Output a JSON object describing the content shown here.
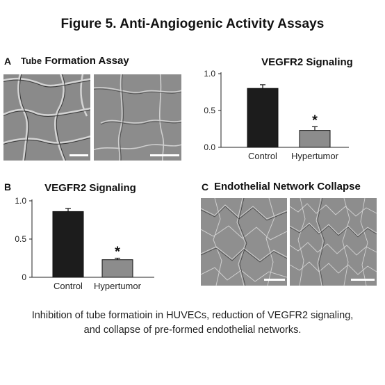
{
  "figure": {
    "title": "Figure 5. Anti-Angiogenic Activity Assays",
    "caption_line1": "Inhibition of tube formatioin in HUVECs, reduction of VEGFR2 signaling,",
    "caption_line2": "and collapse of pre-formed endothelial networks."
  },
  "panel_a": {
    "letter": "A",
    "title_prefix": "Tube",
    "title_rest": "Formation Assay"
  },
  "panel_b": {
    "letter": "B"
  },
  "panel_c": {
    "letter": "C",
    "title": "Endothelial Network Collapse"
  },
  "chart_data": [
    {
      "type": "bar",
      "title": "VEGFR2 Signaling",
      "categories": [
        "Control",
        "Hypertumor"
      ],
      "values": [
        0.8,
        0.23
      ],
      "errors": [
        0.05,
        0.05
      ],
      "significance": [
        "",
        "*"
      ],
      "colors": [
        "#1c1c1c",
        "#8c8c8c"
      ],
      "ylim": [
        0,
        1.0
      ],
      "yticks": [
        0,
        0.5,
        1.0
      ],
      "ytick_labels": [
        "0.0",
        "0.5",
        "1.0"
      ],
      "grid": false
    },
    {
      "type": "bar",
      "title": "VEGFR2 Signaling",
      "categories": [
        "Control",
        "Hypertumor"
      ],
      "values": [
        0.86,
        0.23
      ],
      "errors": [
        0.04,
        0.02
      ],
      "significance": [
        "",
        "*"
      ],
      "colors": [
        "#1c1c1c",
        "#8c8c8c"
      ],
      "ylim": [
        0,
        1.0
      ],
      "yticks": [
        0,
        0.5,
        1.0
      ],
      "ytick_labels": [
        "0",
        "0.5",
        "1.0"
      ],
      "grid": false
    }
  ]
}
